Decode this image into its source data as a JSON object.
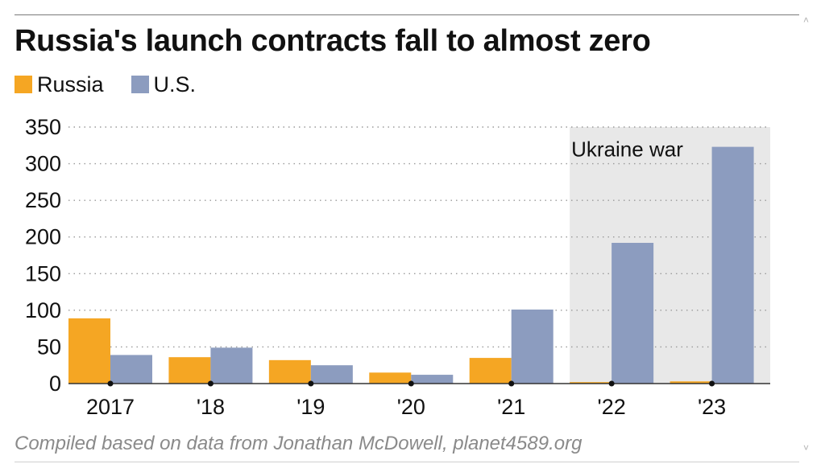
{
  "title": "Russia's launch contracts fall to almost zero",
  "legend": [
    {
      "label": "Russia",
      "color": "#f5a623"
    },
    {
      "label": "U.S.",
      "color": "#8c9cbf"
    }
  ],
  "source": "Compiled based on data from Jonathan McDowell, planet4589.org",
  "chart_data": {
    "type": "bar",
    "categories": [
      "2017",
      "'18",
      "'19",
      "'20",
      "'21",
      "'22",
      "'23"
    ],
    "series": [
      {
        "name": "Russia",
        "color": "#f5a623",
        "values": [
          89,
          36,
          32,
          15,
          35,
          2,
          3
        ]
      },
      {
        "name": "U.S.",
        "color": "#8c9cbf",
        "values": [
          39,
          49,
          25,
          12,
          101,
          192,
          323
        ]
      }
    ],
    "yticks": [
      0,
      50,
      100,
      150,
      200,
      250,
      300,
      350
    ],
    "ylim": [
      0,
      350
    ],
    "grid": true,
    "annotation": {
      "text": "Ukraine war",
      "categories": [
        "'22",
        "'23"
      ],
      "shade_color": "#e8e8e8"
    },
    "legend_position": "top-left"
  }
}
